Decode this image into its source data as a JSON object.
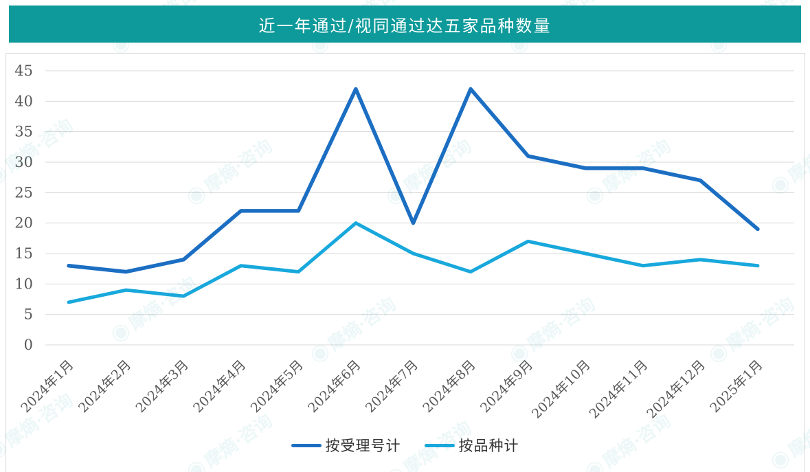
{
  "header": {
    "title": "近一年通过/视同通过达五家品种数量",
    "background_color": "#0E9A9A",
    "text_color": "#FFFFFF"
  },
  "watermark": {
    "text": "摩熵·咨询",
    "color": "#0E9A9A"
  },
  "chart_data": {
    "type": "line",
    "title": "近一年通过/视同通过达五家品种数量",
    "categories": [
      "2024年1月",
      "2024年2月",
      "2024年3月",
      "2024年4月",
      "2024年5月",
      "2024年6月",
      "2024年7月",
      "2024年8月",
      "2024年9月",
      "2024年10月",
      "2024年11月",
      "2024年12月",
      "2025年1月"
    ],
    "series": [
      {
        "name": "按受理号计",
        "color": "#1B6EC2",
        "values": [
          13,
          12,
          14,
          22,
          22,
          42,
          20,
          42,
          31,
          29,
          29,
          27,
          19
        ]
      },
      {
        "name": "按品种计",
        "color": "#18A8DC",
        "values": [
          7,
          9,
          8,
          13,
          12,
          20,
          15,
          12,
          17,
          15,
          13,
          14,
          13
        ]
      }
    ],
    "xlabel": "",
    "ylabel": "",
    "ylim": [
      0,
      45
    ],
    "yticks": [
      0,
      5,
      10,
      15,
      20,
      25,
      30,
      35,
      40,
      45
    ],
    "grid": true,
    "gridline_color": "#D9D9D9",
    "axis_label_color": "#595959",
    "legend_position": "bottom"
  }
}
